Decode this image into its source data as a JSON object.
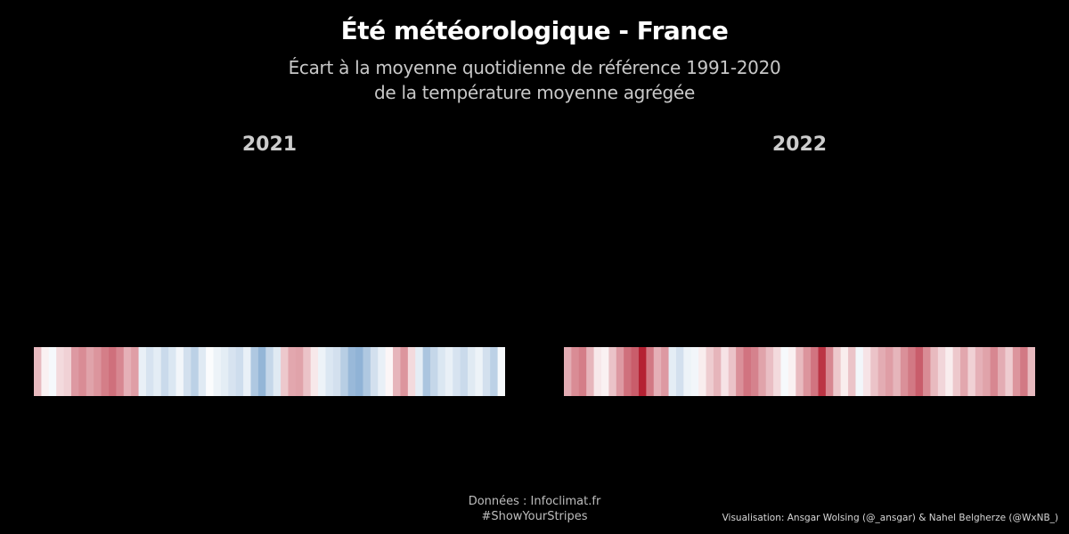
{
  "title": "Été météorologique - France",
  "subtitle": [
    "Écart à la moyenne quotidienne de référence 1991-2020",
    "de la température moyenne agrégée"
  ],
  "source": [
    "Données : Infoclimat.fr",
    "#ShowYourStripes"
  ],
  "credit": "Visualisation: Ansgar Wolsing (@_ansgar) & Nahel Belgherze (@WxNB_)",
  "colors": {
    "background": "#000000",
    "cold": "#2166ac",
    "neutral": "#ffffff",
    "warm": "#b2182b"
  },
  "chart_data": [
    {
      "type": "heatmap",
      "facet": "2021",
      "x_unit": "day (1 June - 31 August)",
      "value_unit": "°C anomaly",
      "color_range": [
        -5,
        5
      ],
      "values": [
        1.5,
        0.3,
        -0.2,
        0.8,
        1.0,
        2.2,
        2.5,
        2.0,
        2.3,
        2.8,
        3.1,
        2.6,
        1.7,
        2.1,
        -0.5,
        -0.9,
        -0.6,
        -1.2,
        -0.8,
        -0.3,
        -1.0,
        -1.5,
        -0.7,
        -0.1,
        -0.4,
        -0.6,
        -0.9,
        -1.1,
        -0.5,
        -1.8,
        -2.4,
        -1.3,
        -0.7,
        1.2,
        1.9,
        2.0,
        1.3,
        0.5,
        -0.4,
        -0.8,
        -1.0,
        -1.6,
        -2.3,
        -2.5,
        -1.8,
        -1.0,
        -0.5,
        0.2,
        1.6,
        2.3,
        0.8,
        -0.6,
        -1.9,
        -1.3,
        -0.8,
        -0.5,
        -0.9,
        -1.2,
        -0.7,
        -0.4,
        -1.0,
        -1.5,
        -0.2
      ],
      "color_note": "blue = below average, red = above average"
    },
    {
      "type": "heatmap",
      "facet": "2022",
      "x_unit": "day (1 June - 31 August)",
      "value_unit": "°C anomaly",
      "color_range": [
        -5,
        5
      ],
      "values": [
        1.8,
        2.5,
        2.8,
        1.6,
        0.5,
        0.3,
        1.3,
        2.2,
        3.1,
        3.5,
        4.8,
        2.9,
        1.7,
        2.2,
        -0.6,
        -1.0,
        -0.4,
        -0.3,
        0.4,
        1.1,
        1.6,
        0.6,
        1.3,
        2.4,
        3.0,
        2.7,
        2.0,
        1.4,
        0.8,
        -0.2,
        0.3,
        1.5,
        2.3,
        3.0,
        4.4,
        2.6,
        1.2,
        0.4,
        1.3,
        -0.3,
        0.6,
        1.3,
        1.8,
        2.1,
        1.6,
        2.4,
        2.9,
        3.5,
        2.5,
        1.5,
        0.9,
        0.4,
        1.2,
        1.9,
        1.0,
        1.7,
        2.0,
        2.6,
        1.8,
        1.1,
        2.3,
        2.9,
        1.5
      ]
    }
  ]
}
